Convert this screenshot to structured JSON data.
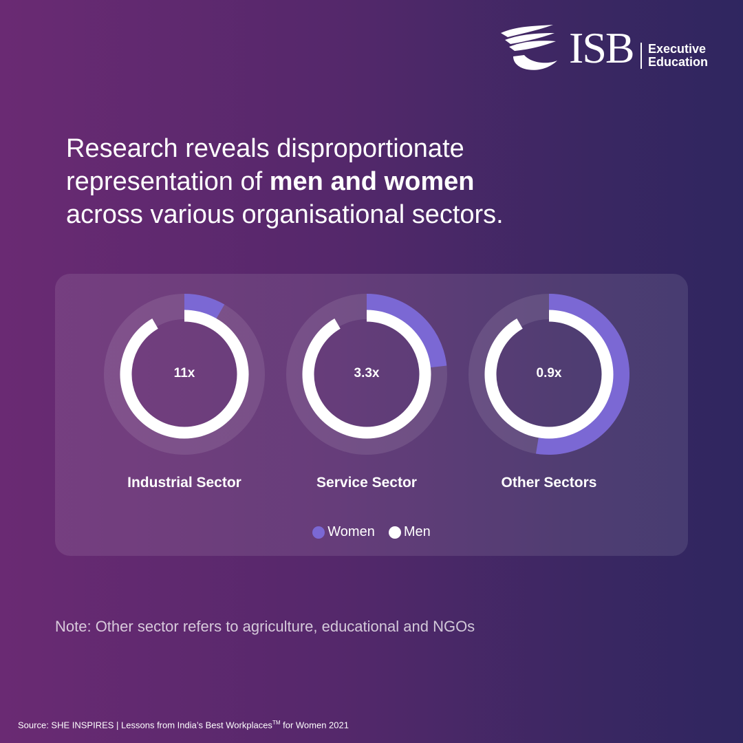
{
  "logo": {
    "name": "ISB",
    "sub_line1": "Executive",
    "sub_line2": "Education"
  },
  "headline": {
    "line1": "Research reveals disproportionate",
    "line2_pre": "representation of ",
    "line2_bold": "men and women",
    "line3": "across various organisational sectors."
  },
  "note": "Note: Other sector refers to agriculture, educational and NGOs",
  "source": {
    "text": "Source: SHE INSPIRES | Lessons from India’s Best Workplaces",
    "tm": "TM",
    "suffix": " for Women 2021"
  },
  "colors": {
    "women": "#7b68d4",
    "men": "#ffffff",
    "track": "rgba(255,255,255,0.10)"
  },
  "chart_data": {
    "type": "donut",
    "categories": [
      "Industrial Sector",
      "Service Sector",
      "Other Sectors"
    ],
    "center_labels": [
      "11x",
      "3.3x",
      "0.9x"
    ],
    "ratio_men_to_women": [
      11,
      3.3,
      0.9
    ],
    "series": [
      {
        "name": "Women",
        "values": [
          0.083,
          0.233,
          0.526
        ]
      },
      {
        "name": "Men",
        "values": [
          0.917,
          0.767,
          0.474
        ]
      }
    ],
    "legend": [
      "Women",
      "Men"
    ],
    "legend_position": "bottom-center"
  }
}
